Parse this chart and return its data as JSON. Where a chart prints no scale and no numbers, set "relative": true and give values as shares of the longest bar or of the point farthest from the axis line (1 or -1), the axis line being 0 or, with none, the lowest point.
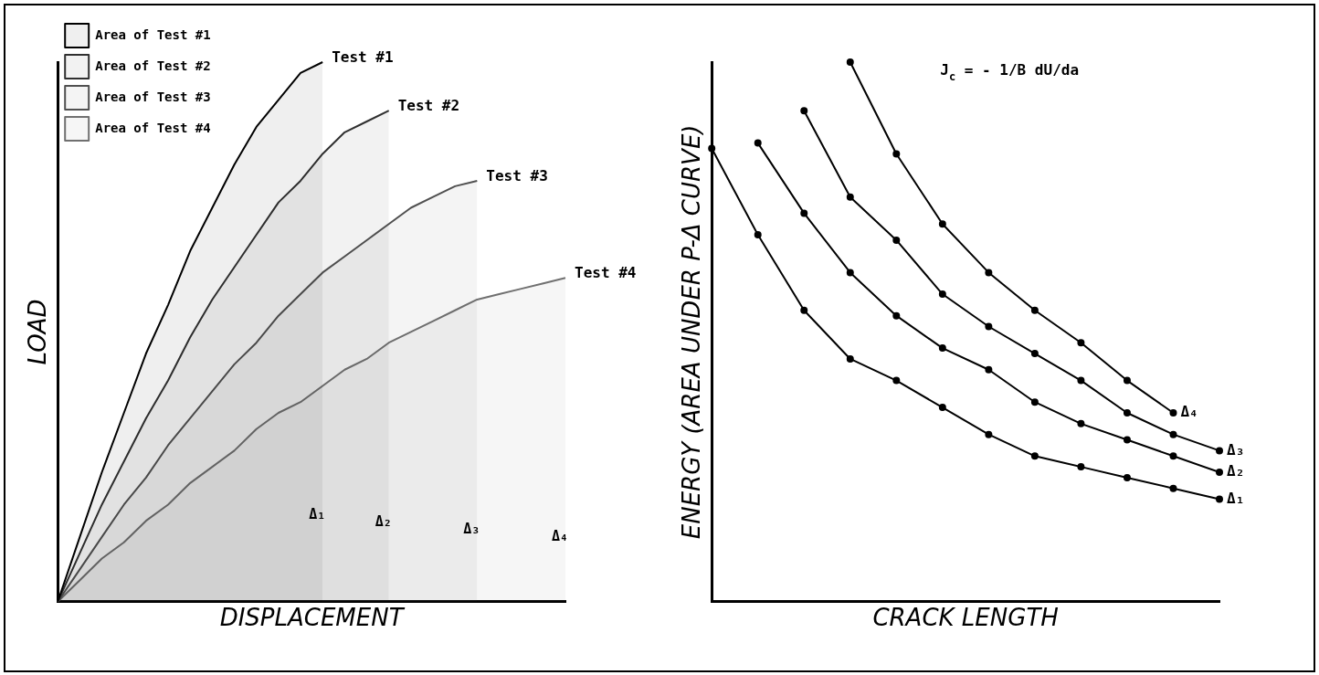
{
  "chart_data": [
    {
      "type": "area",
      "relative": true,
      "xlabel": "DISPLACEMENT",
      "ylabel": "LOAD",
      "legend": "top left",
      "marker": "none",
      "categories": [
        null,
        null,
        null,
        null,
        null,
        null,
        null,
        null,
        null,
        null,
        null,
        null,
        null,
        null,
        null,
        null,
        null,
        null,
        null,
        null,
        null,
        null,
        null,
        null
      ],
      "series": [
        {
          "name": "Area of Test #1",
          "color": "#000000",
          "values": [
            0,
            0.12,
            0.24,
            0.35,
            0.46,
            0.55,
            0.65,
            0.73,
            0.81,
            0.88,
            0.93,
            0.98,
            1,
            null,
            null,
            null,
            null,
            null,
            null,
            null,
            null,
            null,
            null,
            null
          ]
        },
        {
          "name": "Area of Test #2",
          "color": "#303030",
          "values": [
            0,
            0.09,
            0.18,
            0.26,
            0.34,
            0.41,
            0.49,
            0.56,
            0.62,
            0.68,
            0.74,
            0.78,
            0.83,
            0.87,
            0.89,
            0.91,
            null,
            null,
            null,
            null,
            null,
            null,
            null,
            null
          ]
        },
        {
          "name": "Area of Test #3",
          "color": "#505050",
          "values": [
            0,
            0.06,
            0.12,
            0.18,
            0.23,
            0.29,
            0.34,
            0.39,
            0.44,
            0.48,
            0.53,
            0.57,
            0.61,
            0.64,
            0.67,
            0.7,
            0.73,
            0.75,
            0.77,
            0.78,
            null,
            null,
            null,
            null
          ]
        },
        {
          "name": "Area of Test #4",
          "color": "#707070",
          "values": [
            0,
            0.04,
            0.08,
            0.11,
            0.15,
            0.18,
            0.22,
            0.25,
            0.28,
            0.32,
            0.35,
            0.37,
            0.4,
            0.43,
            0.45,
            0.48,
            0.5,
            0.52,
            0.54,
            0.56,
            0.57,
            0.58,
            0.59,
            0.6
          ]
        }
      ],
      "annotations": [
        "Test #1",
        "Test #2",
        "Test #3",
        "Test #4",
        "Δ₁",
        "Δ₂",
        "Δ₃",
        "Δ₄"
      ]
    },
    {
      "type": "line",
      "relative": true,
      "xlabel": "CRACK LENGTH",
      "ylabel": "ENERGY (AREA UNDER P-Δ CURVE)",
      "marker": "circle",
      "legend": false,
      "categories": [
        null,
        null,
        null,
        null,
        null,
        null,
        null,
        null,
        null,
        null,
        null,
        null
      ],
      "series": [
        {
          "name": "Δ₁",
          "color": "#000000",
          "values": [
            0.84,
            0.68,
            0.54,
            0.45,
            0.41,
            0.36,
            0.31,
            0.27,
            0.25,
            0.23,
            0.21,
            0.19
          ]
        },
        {
          "name": "Δ₂",
          "color": "#000000",
          "values": [
            null,
            0.85,
            0.72,
            0.61,
            0.53,
            0.47,
            0.43,
            0.37,
            0.33,
            0.3,
            0.27,
            0.24
          ]
        },
        {
          "name": "Δ₃",
          "color": "#000000",
          "values": [
            null,
            null,
            0.91,
            0.75,
            0.67,
            0.57,
            0.51,
            0.46,
            0.41,
            0.35,
            0.31,
            0.28
          ]
        },
        {
          "name": "Δ₄",
          "color": "#000000",
          "values": [
            null,
            null,
            null,
            1,
            0.83,
            0.7,
            0.61,
            0.54,
            0.48,
            0.41,
            0.35,
            null
          ]
        }
      ],
      "annotations": [
        "J$_{c}$ = - 1/B dU/da"
      ]
    }
  ]
}
